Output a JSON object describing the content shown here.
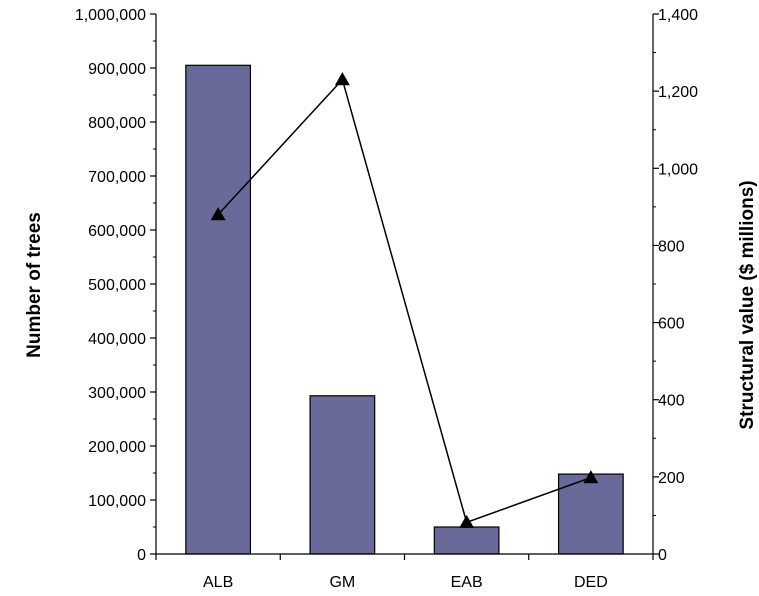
{
  "chart_data": {
    "type": "bar",
    "categories": [
      "ALB",
      "GM",
      "EAB",
      "DED"
    ],
    "series": [
      {
        "kind": "bar",
        "axis": "left",
        "values": [
          905000,
          293000,
          50000,
          148000
        ],
        "color": "#6a6a9a"
      },
      {
        "kind": "line",
        "axis": "right",
        "marker": "triangle",
        "values": [
          880,
          1230,
          82,
          198
        ],
        "color": "#000000"
      }
    ],
    "ylabel": "Number of trees",
    "y2label": "Structural value ($ millions)",
    "ylim": [
      0,
      1000000
    ],
    "y2lim": [
      0,
      1400
    ],
    "yticks": [
      "0",
      "100,000",
      "200,000",
      "300,000",
      "400,000",
      "500,000",
      "600,000",
      "700,000",
      "800,000",
      "900,000",
      "1,000,000"
    ],
    "y2ticks": [
      "0",
      "200",
      "400",
      "600",
      "800",
      "1,000",
      "1,200",
      "1,400"
    ],
    "grid": false,
    "legend": "none"
  }
}
